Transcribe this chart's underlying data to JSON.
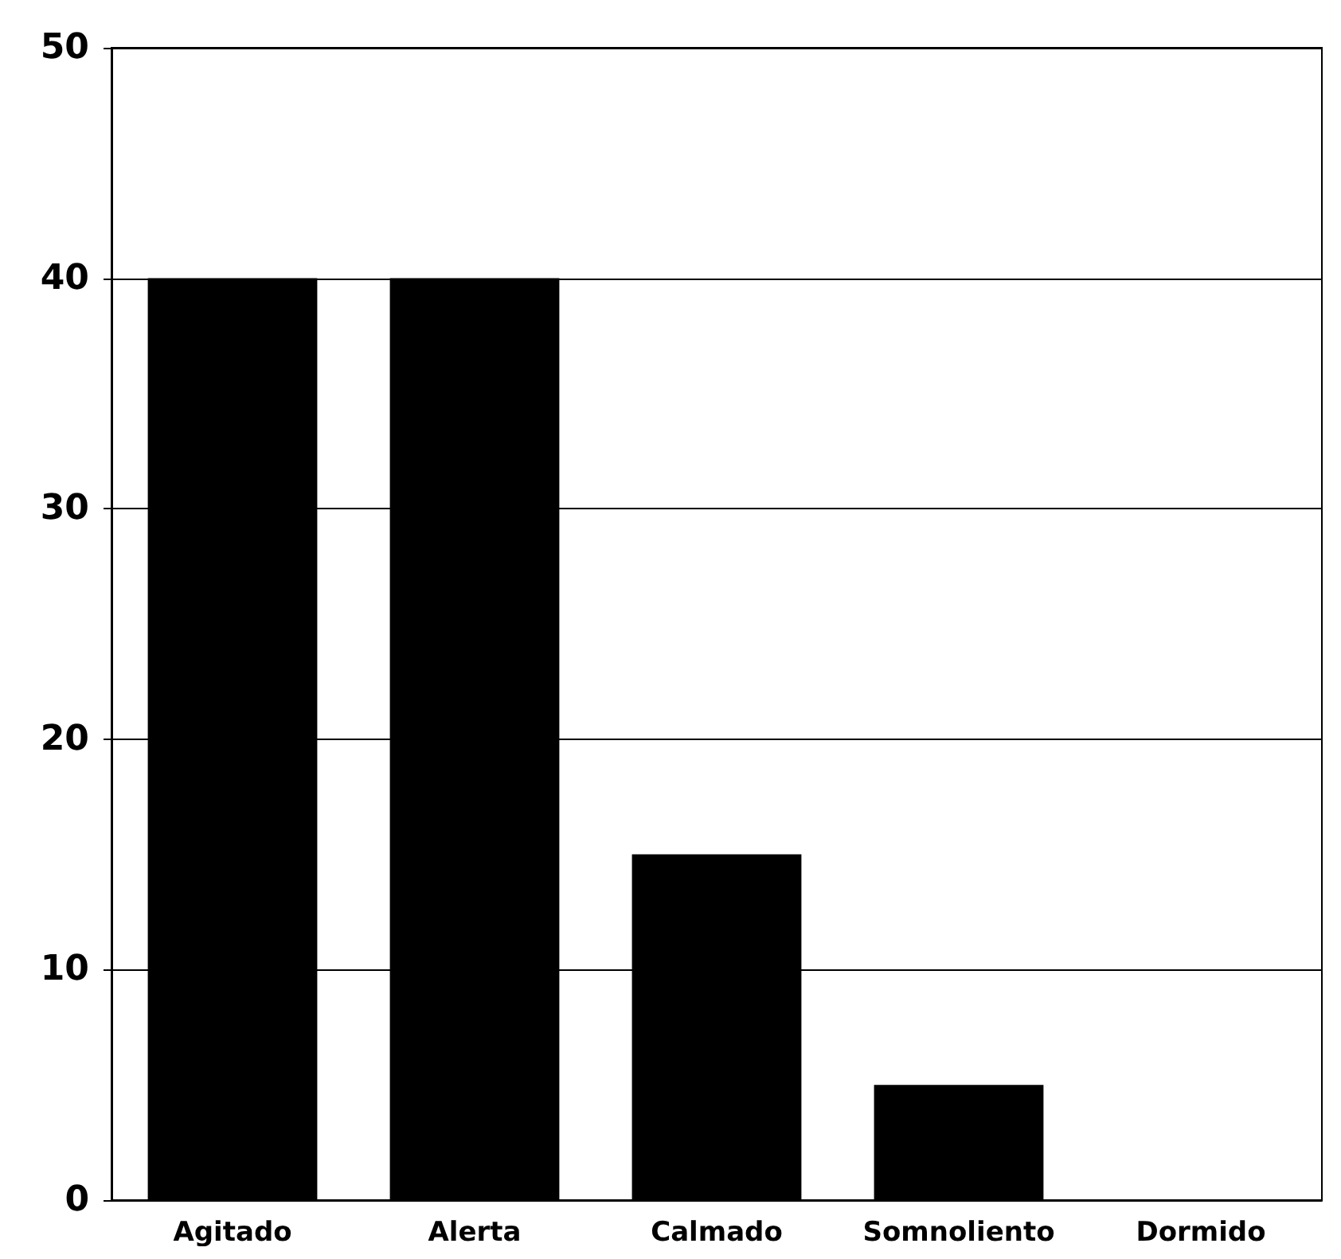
{
  "chart_data": {
    "type": "bar",
    "categories": [
      "Agitado",
      "Alerta",
      "Calmado",
      "Somnoliento",
      "Dormido"
    ],
    "values": [
      40,
      40,
      15,
      5,
      0
    ],
    "color": "#000000",
    "ylim": [
      0,
      50
    ],
    "yticks": [
      0,
      10,
      20,
      30,
      40,
      50
    ],
    "grid": "y"
  }
}
